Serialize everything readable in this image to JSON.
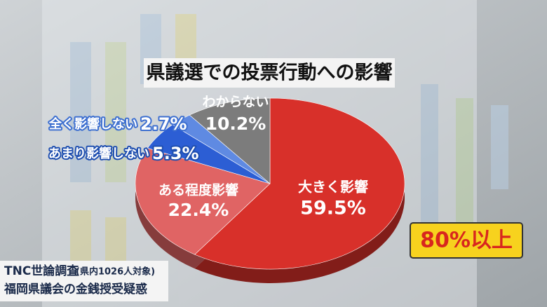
{
  "chart_data": {
    "type": "pie",
    "title": "県議選での投票行動への影響",
    "categories": [
      "大きく影響",
      "ある程度影響",
      "あまり影響しない",
      "全く影響しない",
      "わからない"
    ],
    "values": [
      59.5,
      22.4,
      5.3,
      2.7,
      10.2
    ],
    "value_labels": [
      "59.5%",
      "22.4%",
      "5.3%",
      "2.7%",
      "10.2%"
    ],
    "colors": [
      "#d8302a",
      "#e06464",
      "#2c5ed4",
      "#5f8ae2",
      "#7c7c7c"
    ],
    "annotation": "80%以上"
  },
  "caption": {
    "survey": "TNC世論調査",
    "sample": "(県内1026人対象)",
    "topic": "福岡県議会の金銭授受疑惑"
  }
}
